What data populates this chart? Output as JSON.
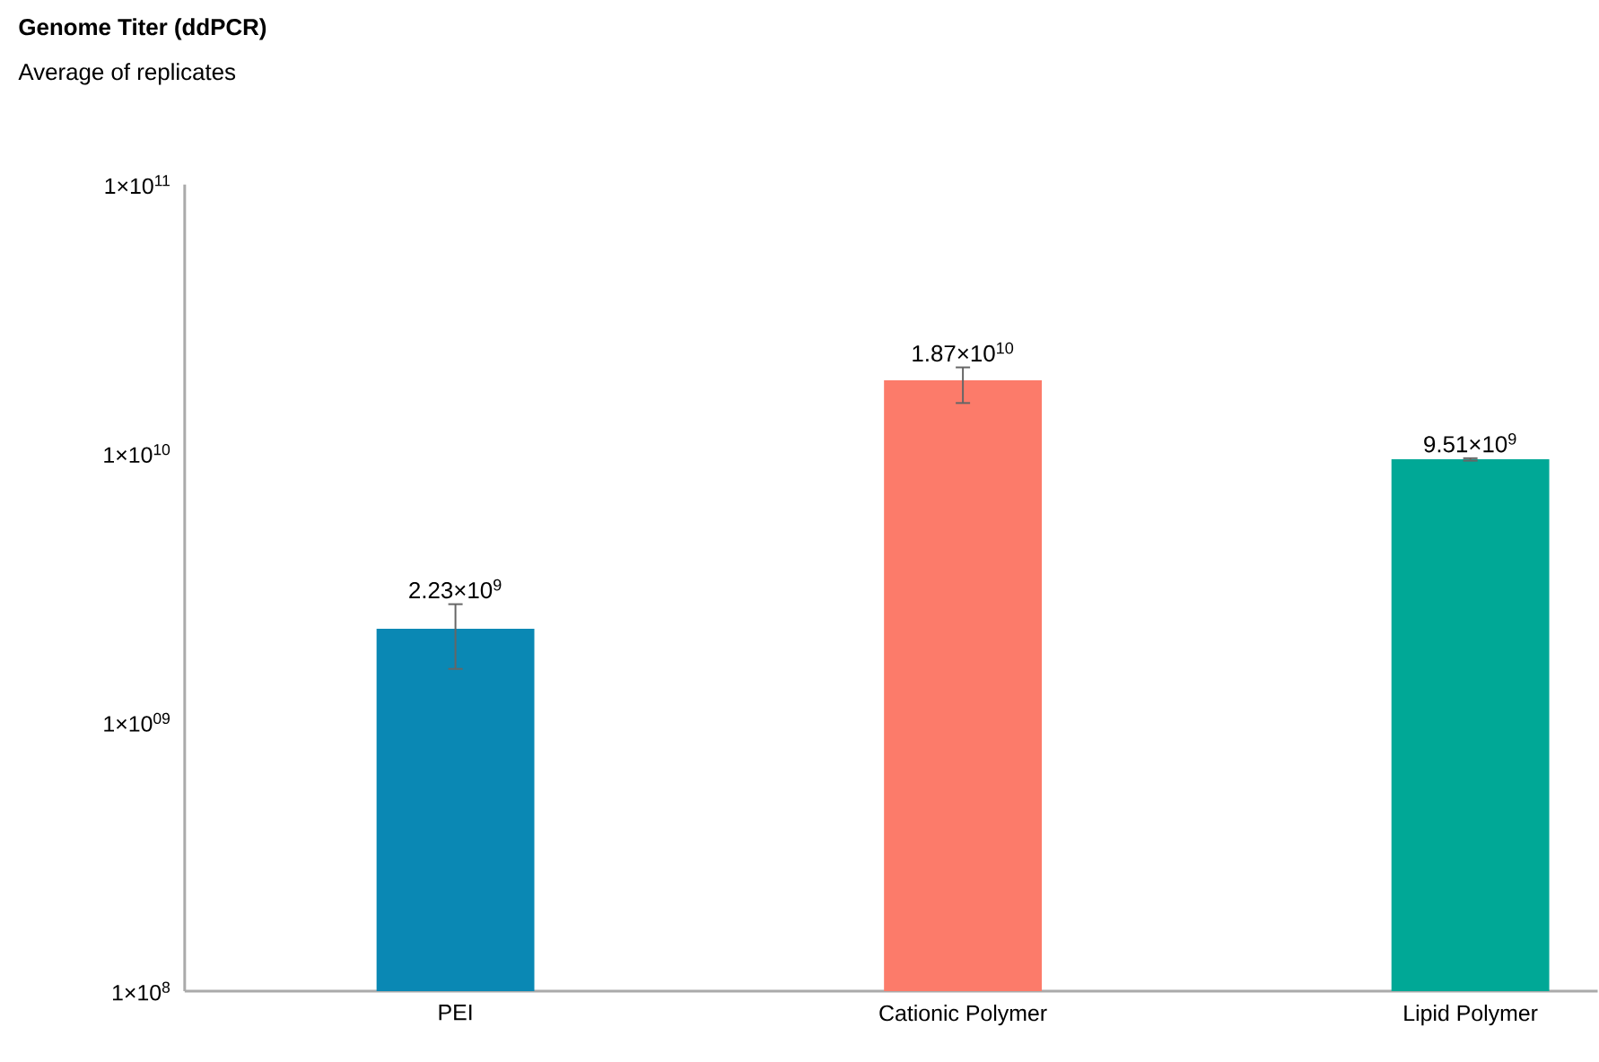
{
  "chart_data": {
    "type": "bar",
    "title": "**Genome Titer (ddPCR)**",
    "subtitle": "Average of replicates",
    "categories": [
      "PEI",
      "Cationic Polymer",
      "Lipid Polymer"
    ],
    "values": [
      2230000000.0,
      18700000000.0,
      9510000000.0
    ],
    "colors": [
      "#0a88b4",
      "#fc7b6a",
      "#00a896"
    ],
    "errors": [
      [
        1580000000.0,
        2750000000.0
      ],
      [
        15400000000.0,
        20900000000.0
      ],
      [
        9400000000.0,
        9600000000.0
      ]
    ],
    "value_labels": [
      "2.23×10$^{9}$",
      "1.87×10$^{10}$",
      "9.51×10$^{9}$"
    ],
    "log": true,
    "ylim": [
      100000000.0,
      100000000000.0
    ],
    "yticks": [
      {
        "value": 100000000.0,
        "label": "1×10$^{8}$"
      },
      {
        "value": 1000000000.0,
        "label": "1×10$^{09}$"
      },
      {
        "value": 10000000000.0,
        "label": "1×10$^{10}$"
      },
      {
        "value": 100000000000.0,
        "label": "1×10$^{11}$"
      }
    ]
  }
}
